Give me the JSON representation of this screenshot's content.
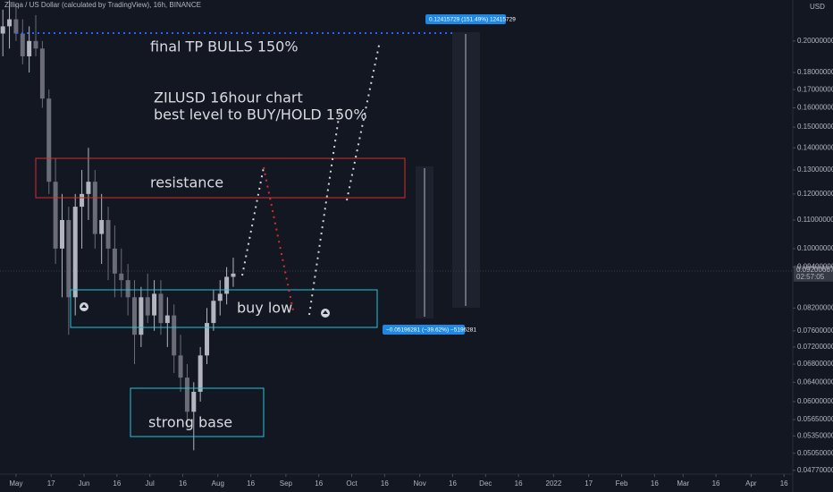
{
  "chart_data": {
    "type": "candlestick",
    "title": "Zilliqa / US Dollar (calculated by TradingView), 16h, BINANCE",
    "currency": "USD",
    "log_scale": true,
    "up_color": "#b2b5be",
    "down_color": "#6a6d78",
    "ylim": [
      0.0471,
      0.2293
    ],
    "yticks": [
      {
        "value": 0.2,
        "label": "0.20000000"
      },
      {
        "value": 0.18,
        "label": "0.18000000"
      },
      {
        "value": 0.17,
        "label": "0.17000000"
      },
      {
        "value": 0.16,
        "label": "0.16000000"
      },
      {
        "value": 0.15,
        "label": "0.15000000"
      },
      {
        "value": 0.14,
        "label": "0.14000000"
      },
      {
        "value": 0.13,
        "label": "0.13000000"
      },
      {
        "value": 0.12,
        "label": "0.12000000"
      },
      {
        "value": 0.11,
        "label": "0.11000000"
      },
      {
        "value": 0.1,
        "label": "0.10000000"
      },
      {
        "value": 0.094,
        "label": "0.09400000"
      },
      {
        "value": 0.082,
        "label": "0.08200000"
      },
      {
        "value": 0.076,
        "label": "0.07600000"
      },
      {
        "value": 0.072,
        "label": "0.07200000"
      },
      {
        "value": 0.068,
        "label": "0.06800000"
      },
      {
        "value": 0.064,
        "label": "0.06400000"
      },
      {
        "value": 0.06,
        "label": "0.06000000"
      },
      {
        "value": 0.0565,
        "label": "0.05650000"
      },
      {
        "value": 0.0535,
        "label": "0.05350000"
      },
      {
        "value": 0.0505,
        "label": "0.05050000"
      },
      {
        "value": 0.0477,
        "label": "0.04770000"
      }
    ],
    "xlim": [
      -7.3,
      354
    ],
    "xticks": [
      {
        "value": 0,
        "label": "May"
      },
      {
        "value": 16,
        "label": "17"
      },
      {
        "value": 31,
        "label": "Jun"
      },
      {
        "value": 46,
        "label": "16"
      },
      {
        "value": 61,
        "label": "Jul"
      },
      {
        "value": 76,
        "label": "16"
      },
      {
        "value": 92,
        "label": "Aug"
      },
      {
        "value": 107,
        "label": "16"
      },
      {
        "value": 123,
        "label": "Sep"
      },
      {
        "value": 138,
        "label": "16"
      },
      {
        "value": 153,
        "label": "Oct"
      },
      {
        "value": 168,
        "label": "16"
      },
      {
        "value": 184,
        "label": "Nov"
      },
      {
        "value": 199,
        "label": "16"
      },
      {
        "value": 214,
        "label": "Dec"
      },
      {
        "value": 229,
        "label": "16"
      },
      {
        "value": 245,
        "label": "2022"
      },
      {
        "value": 261,
        "label": "17"
      },
      {
        "value": 276,
        "label": "Feb"
      },
      {
        "value": 291,
        "label": "16"
      },
      {
        "value": 304,
        "label": "Mar"
      },
      {
        "value": 319,
        "label": "16"
      },
      {
        "value": 335,
        "label": "Apr"
      },
      {
        "value": 350,
        "label": "16"
      }
    ],
    "candles": {
      "x": [
        -6,
        -3,
        0,
        3,
        6,
        9,
        12,
        15,
        18,
        21,
        24,
        27,
        30,
        33,
        36,
        39,
        42,
        45,
        48,
        51,
        54,
        57,
        60,
        63,
        66,
        69,
        72,
        75,
        78,
        81,
        84,
        87,
        90,
        93,
        96,
        99
      ],
      "open": [
        0.205,
        0.21,
        0.215,
        0.205,
        0.19,
        0.2,
        0.195,
        0.165,
        0.125,
        0.1,
        0.11,
        0.085,
        0.115,
        0.12,
        0.125,
        0.105,
        0.11,
        0.1,
        0.092,
        0.09,
        0.085,
        0.075,
        0.085,
        0.08,
        0.086,
        0.078,
        0.08,
        0.07,
        0.065,
        0.058,
        0.062,
        0.07,
        0.078,
        0.084,
        0.086,
        0.091
      ],
      "high": [
        0.222,
        0.229,
        0.226,
        0.215,
        0.21,
        0.218,
        0.2,
        0.17,
        0.135,
        0.12,
        0.115,
        0.12,
        0.13,
        0.14,
        0.13,
        0.12,
        0.115,
        0.108,
        0.1,
        0.095,
        0.09,
        0.088,
        0.092,
        0.09,
        0.09,
        0.085,
        0.083,
        0.075,
        0.068,
        0.064,
        0.072,
        0.082,
        0.087,
        0.09,
        0.094,
        0.097
      ],
      "low": [
        0.19,
        0.195,
        0.2,
        0.185,
        0.18,
        0.19,
        0.16,
        0.12,
        0.095,
        0.085,
        0.075,
        0.08,
        0.1,
        0.11,
        0.1,
        0.095,
        0.09,
        0.085,
        0.085,
        0.08,
        0.068,
        0.072,
        0.078,
        0.076,
        0.075,
        0.072,
        0.066,
        0.062,
        0.055,
        0.051,
        0.06,
        0.068,
        0.076,
        0.08,
        0.083,
        0.088
      ],
      "close": [
        0.21,
        0.215,
        0.205,
        0.19,
        0.2,
        0.195,
        0.165,
        0.125,
        0.1,
        0.11,
        0.085,
        0.115,
        0.12,
        0.125,
        0.105,
        0.11,
        0.1,
        0.092,
        0.09,
        0.085,
        0.075,
        0.085,
        0.08,
        0.086,
        0.078,
        0.08,
        0.07,
        0.065,
        0.058,
        0.062,
        0.07,
        0.078,
        0.084,
        0.086,
        0.091,
        0.092
      ]
    },
    "last_price": 0.09200667,
    "countdown": "02:57:05",
    "annotations": {
      "target": "final TP BULLS 150%",
      "chart_note_1": "ZILUSD 16hour chart",
      "chart_note_2": "best level to BUY/HOLD 150%",
      "resistance": "resistance",
      "buy_zone": "buy low",
      "base": "strong base",
      "measure_up": "0.12415729 (151.49%) 12415729",
      "measure_down": "−0.05196281 (−39.62%) −5196281"
    }
  }
}
